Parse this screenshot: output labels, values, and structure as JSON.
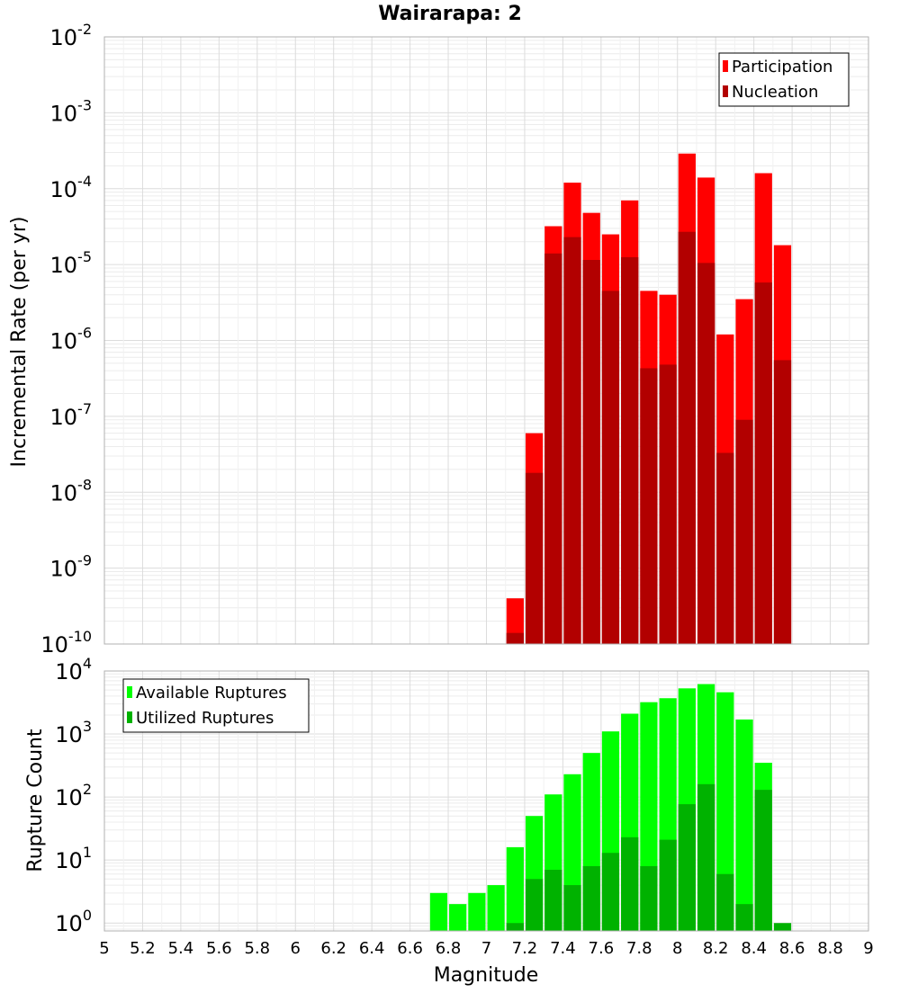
{
  "chart_data": {
    "type": "bar",
    "title": "Wairarapa: 2",
    "xlabel": "Magnitude",
    "xlim": [
      5,
      9
    ],
    "bin_width": 0.1,
    "x_ticks": [
      "5",
      "5.2",
      "5.4",
      "5.6",
      "5.8",
      "6",
      "6.2",
      "6.4",
      "6.6",
      "6.8",
      "7",
      "7.2",
      "7.4",
      "7.6",
      "7.8",
      "8",
      "8.2",
      "8.4",
      "8.6",
      "8.8",
      "9"
    ],
    "panels": [
      {
        "ylabel": "Incremental Rate (per yr)",
        "yscale": "log",
        "ylim": [
          1e-10,
          0.01
        ],
        "y_tick_exponents": [
          -2,
          -3,
          -4,
          -5,
          -6,
          -7,
          -8,
          -9,
          -10
        ],
        "legend_position": "top-right",
        "grid": true,
        "x": [
          7.15,
          7.25,
          7.35,
          7.45,
          7.55,
          7.65,
          7.75,
          7.85,
          7.95,
          8.05,
          8.15,
          8.25,
          8.35,
          8.45,
          8.55
        ],
        "series": [
          {
            "name": "Participation",
            "color": "#ff0000",
            "values": [
              4e-10,
              6e-08,
              3.2e-05,
              0.00012,
              4.8e-05,
              2.5e-05,
              7e-05,
              4.5e-06,
              4e-06,
              0.00029,
              0.00014,
              1.2e-06,
              3.5e-06,
              0.00016,
              1.8e-05
            ]
          },
          {
            "name": "Nucleation",
            "color": "#b20000",
            "values": [
              1.4e-10,
              1.8e-08,
              1.4e-05,
              2.3e-05,
              1.15e-05,
              4.5e-06,
              1.25e-05,
              4.3e-07,
              4.8e-07,
              2.7e-05,
              1.05e-05,
              3.3e-08,
              9e-08,
              5.8e-06,
              5.5e-07
            ]
          }
        ]
      },
      {
        "ylabel": "Rupture Count",
        "yscale": "log",
        "ylim": [
          0.75,
          10000
        ],
        "y_tick_exponents": [
          4,
          3,
          2,
          1,
          0
        ],
        "legend_position": "top-left",
        "grid": true,
        "x": [
          6.75,
          6.85,
          6.95,
          7.05,
          7.15,
          7.25,
          7.35,
          7.45,
          7.55,
          7.65,
          7.75,
          7.85,
          7.95,
          8.05,
          8.15,
          8.25,
          8.35,
          8.45,
          8.55
        ],
        "series": [
          {
            "name": "Available Ruptures",
            "color": "#00ff00",
            "values": [
              3,
              2,
              3,
              4,
              16,
              50,
              110,
              230,
              500,
              1100,
              2100,
              3200,
              3700,
              5300,
              6200,
              4600,
              1700,
              350,
              null
            ]
          },
          {
            "name": "Utilized Ruptures",
            "color": "#00b200",
            "values": [
              null,
              null,
              null,
              null,
              1,
              5,
              7,
              4,
              8,
              13,
              23,
              8,
              21,
              77,
              160,
              6,
              2,
              130,
              1
            ]
          }
        ]
      }
    ]
  }
}
